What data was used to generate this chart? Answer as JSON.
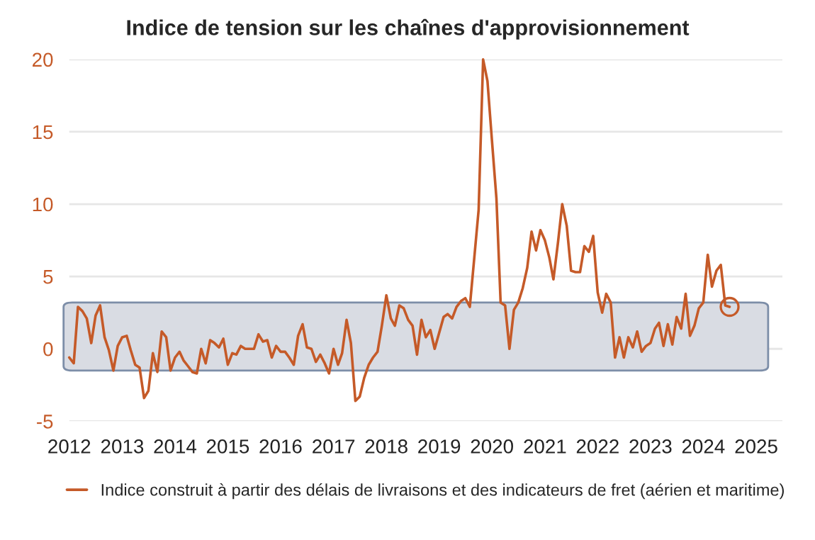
{
  "chart_data": {
    "type": "line",
    "title": "Indice de tension sur les chaînes d'approvisionnement",
    "x": [
      "2012-01",
      "2012-02",
      "2012-03",
      "2012-04",
      "2012-05",
      "2012-06",
      "2012-07",
      "2012-08",
      "2012-09",
      "2012-10",
      "2012-11",
      "2012-12",
      "2013-01",
      "2013-02",
      "2013-03",
      "2013-04",
      "2013-05",
      "2013-06",
      "2013-07",
      "2013-08",
      "2013-09",
      "2013-10",
      "2013-11",
      "2013-12",
      "2014-01",
      "2014-02",
      "2014-03",
      "2014-04",
      "2014-05",
      "2014-06",
      "2014-07",
      "2014-08",
      "2014-09",
      "2014-10",
      "2014-11",
      "2014-12",
      "2015-01",
      "2015-02",
      "2015-03",
      "2015-04",
      "2015-05",
      "2015-06",
      "2015-07",
      "2015-08",
      "2015-09",
      "2015-10",
      "2015-11",
      "2015-12",
      "2016-01",
      "2016-02",
      "2016-03",
      "2016-04",
      "2016-05",
      "2016-06",
      "2016-07",
      "2016-08",
      "2016-09",
      "2016-10",
      "2016-11",
      "2016-12",
      "2017-01",
      "2017-02",
      "2017-03",
      "2017-04",
      "2017-05",
      "2017-06",
      "2017-07",
      "2017-08",
      "2017-09",
      "2017-10",
      "2017-11",
      "2017-12",
      "2018-01",
      "2018-02",
      "2018-03",
      "2018-04",
      "2018-05",
      "2018-06",
      "2018-07",
      "2018-08",
      "2018-09",
      "2018-10",
      "2018-11",
      "2018-12",
      "2019-01",
      "2019-02",
      "2019-03",
      "2019-04",
      "2019-05",
      "2019-06",
      "2019-07",
      "2019-08",
      "2019-09",
      "2019-10",
      "2019-11",
      "2019-12",
      "2020-01",
      "2020-02",
      "2020-03",
      "2020-04",
      "2020-05",
      "2020-06",
      "2020-07",
      "2020-08",
      "2020-09",
      "2020-10",
      "2020-11",
      "2020-12",
      "2021-01",
      "2021-02",
      "2021-03",
      "2021-04",
      "2021-05",
      "2021-06",
      "2021-07",
      "2021-08",
      "2021-09",
      "2021-10",
      "2021-11",
      "2021-12",
      "2022-01",
      "2022-02",
      "2022-03",
      "2022-04",
      "2022-05",
      "2022-06",
      "2022-07",
      "2022-08",
      "2022-09",
      "2022-10",
      "2022-11",
      "2022-12",
      "2023-01",
      "2023-02",
      "2023-03",
      "2023-04",
      "2023-05",
      "2023-06",
      "2023-07",
      "2023-08",
      "2023-09",
      "2023-10",
      "2023-11",
      "2023-12",
      "2024-01",
      "2024-02",
      "2024-03",
      "2024-04",
      "2024-05",
      "2024-06",
      "2024-07"
    ],
    "series": [
      {
        "name": "Indice construit à partir des délais de livraisons et des indicateurs de fret (aérien et maritime)",
        "color": "#c55a28",
        "values": [
          -0.6,
          -1.0,
          2.9,
          2.6,
          2.1,
          0.4,
          2.3,
          3.0,
          0.8,
          -0.1,
          -1.5,
          0.2,
          0.8,
          0.9,
          -0.1,
          -1.1,
          -1.3,
          -3.4,
          -2.9,
          -0.3,
          -1.6,
          1.2,
          0.8,
          -1.5,
          -0.6,
          -0.2,
          -0.8,
          -1.2,
          -1.6,
          -1.7,
          0,
          -1.0,
          0.6,
          0.4,
          0.1,
          0.7,
          -1.1,
          -0.3,
          -0.4,
          0.2,
          0,
          0,
          0,
          1.0,
          0.5,
          0.6,
          -0.6,
          0.2,
          -0.2,
          -0.2,
          -0.6,
          -1.1,
          0.9,
          1.7,
          0.1,
          0,
          -0.9,
          -0.4,
          -1.0,
          -1.7,
          0,
          -1.1,
          -0.3,
          2.0,
          0.4,
          -3.6,
          -3.3,
          -2.0,
          -1.1,
          -0.6,
          -0.2,
          1.6,
          3.7,
          2.1,
          1.6,
          3.0,
          2.8,
          2.0,
          1.6,
          -0.4,
          2.0,
          0.8,
          1.3,
          0,
          1.1,
          2.2,
          2.4,
          2.1,
          2.9,
          3.3,
          3.5,
          2.9,
          6.3,
          9.6,
          20.0,
          18.5,
          14.4,
          10.4,
          3.2,
          3.0,
          0,
          2.7,
          3.2,
          4.2,
          5.6,
          8.1,
          6.8,
          8.2,
          7.5,
          6.3,
          4.8,
          7.3,
          10.0,
          8.5,
          5.4,
          5.3,
          5.3,
          7.1,
          6.7,
          7.8,
          3.9,
          2.5,
          3.8,
          3.2,
          -0.6,
          0.8,
          -0.6,
          0.8,
          0.1,
          1.2,
          -0.2,
          0.2,
          0.4,
          1.4,
          1.8,
          0.2,
          1.7,
          0.3,
          2.2,
          1.4,
          3.8,
          0.9,
          1.6,
          2.8,
          3.2,
          6.5,
          4.3,
          5.4,
          5.8,
          3.0,
          2.9
        ]
      }
    ],
    "xlim": [
      "2012-01-01",
      "2025-07-01"
    ],
    "xticks": [
      "2012",
      "2013",
      "2014",
      "2015",
      "2016",
      "2017",
      "2018",
      "2019",
      "2020",
      "2021",
      "2022",
      "2023",
      "2024",
      "2025"
    ],
    "ylim": [
      -5,
      20
    ],
    "yticks": [
      -5,
      0,
      5,
      10,
      15,
      20
    ],
    "bands": [
      {
        "axis": "y",
        "from": -1.5,
        "to": 3.2,
        "color": "#d9dce3"
      }
    ],
    "grid": "y",
    "legend": "bottom",
    "marker": "none",
    "line_style": "solid"
  }
}
